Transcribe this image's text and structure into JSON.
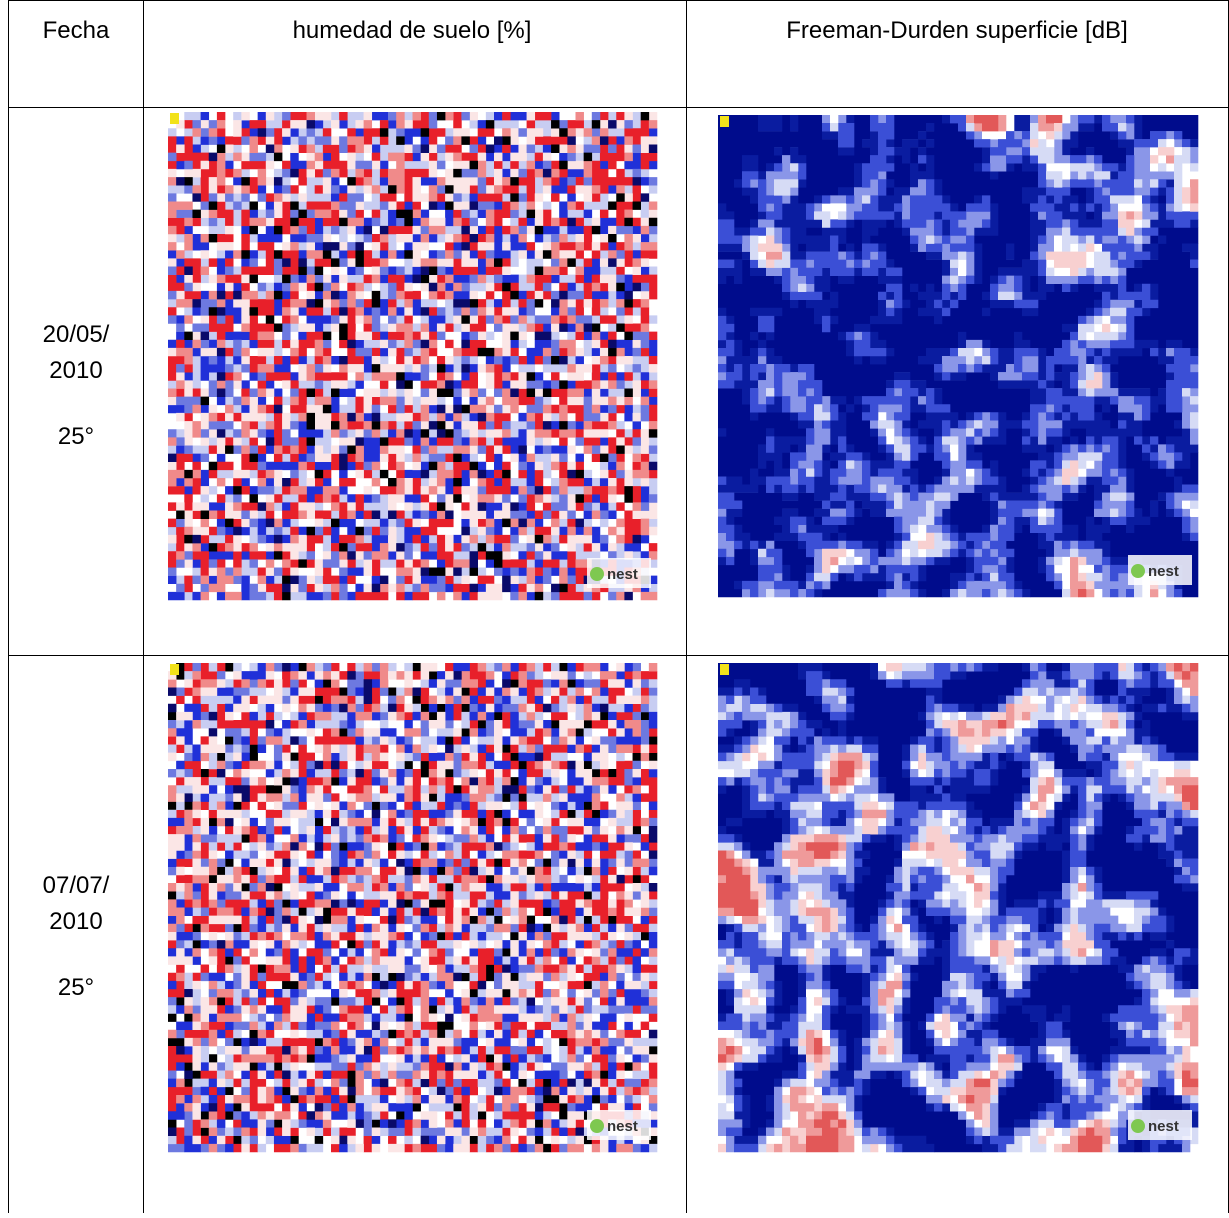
{
  "table": {
    "header": [
      "Fecha",
      "humedad de suelo [%]",
      "Freeman-Durden superficie [dB]"
    ],
    "rows": [
      {
        "date": [
          "20/05/",
          "2010"
        ],
        "angle": "25°"
      },
      {
        "date": [
          "07/07/",
          "2010"
        ],
        "angle": "25°"
      }
    ],
    "watermark": "nest"
  }
}
